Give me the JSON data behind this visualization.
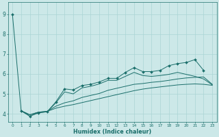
{
  "xlabel": "Humidex (Indice chaleur)",
  "background_color": "#cce8e8",
  "grid_color": "#aad4d4",
  "line_color": "#1a6e6a",
  "xlim": [
    -0.5,
    23.5
  ],
  "ylim": [
    3.6,
    9.6
  ],
  "xticks": [
    0,
    1,
    2,
    3,
    4,
    5,
    6,
    7,
    8,
    9,
    10,
    11,
    12,
    13,
    14,
    15,
    16,
    17,
    18,
    19,
    20,
    21,
    22,
    23
  ],
  "yticks": [
    4,
    5,
    6,
    7,
    8,
    9
  ],
  "lines": [
    {
      "x": [
        0,
        1,
        2,
        3,
        4,
        5,
        6,
        7,
        8,
        9,
        10,
        11,
        12,
        13,
        14,
        15,
        16,
        17,
        18,
        19,
        20,
        21,
        22
      ],
      "y": [
        9.0,
        4.15,
        3.88,
        4.05,
        4.1,
        4.6,
        5.25,
        5.2,
        5.42,
        5.48,
        5.6,
        5.78,
        5.78,
        6.08,
        6.32,
        6.12,
        6.12,
        6.18,
        6.42,
        6.52,
        6.58,
        6.72,
        6.18
      ],
      "marker": true
    },
    {
      "x": [
        1,
        2,
        3,
        4,
        5,
        6,
        7,
        8,
        9,
        10,
        11,
        12,
        13,
        14,
        15,
        16,
        17,
        18,
        19,
        20,
        21,
        22,
        23
      ],
      "y": [
        4.15,
        3.88,
        4.05,
        4.1,
        4.55,
        5.1,
        5.0,
        5.3,
        5.38,
        5.5,
        5.68,
        5.68,
        5.88,
        6.08,
        5.92,
        5.88,
        5.92,
        5.98,
        6.08,
        5.98,
        5.88,
        5.75,
        5.45
      ],
      "marker": false
    },
    {
      "x": [
        1,
        2,
        3,
        4,
        5,
        6,
        7,
        8,
        9,
        10,
        11,
        12,
        13,
        14,
        15,
        16,
        17,
        18,
        19,
        20,
        21,
        22,
        23
      ],
      "y": [
        4.15,
        3.95,
        4.08,
        4.12,
        4.38,
        4.55,
        4.65,
        4.82,
        4.92,
        5.02,
        5.18,
        5.28,
        5.38,
        5.48,
        5.52,
        5.58,
        5.62,
        5.68,
        5.75,
        5.8,
        5.83,
        5.85,
        5.48
      ],
      "marker": false
    },
    {
      "x": [
        1,
        2,
        3,
        4,
        5,
        6,
        7,
        8,
        9,
        10,
        11,
        12,
        13,
        14,
        15,
        16,
        17,
        18,
        19,
        20,
        21,
        22,
        23
      ],
      "y": [
        4.15,
        3.95,
        4.08,
        4.12,
        4.28,
        4.38,
        4.46,
        4.56,
        4.66,
        4.76,
        4.86,
        4.96,
        5.06,
        5.16,
        5.24,
        5.3,
        5.35,
        5.4,
        5.45,
        5.48,
        5.5,
        5.48,
        5.43
      ],
      "marker": false
    }
  ]
}
